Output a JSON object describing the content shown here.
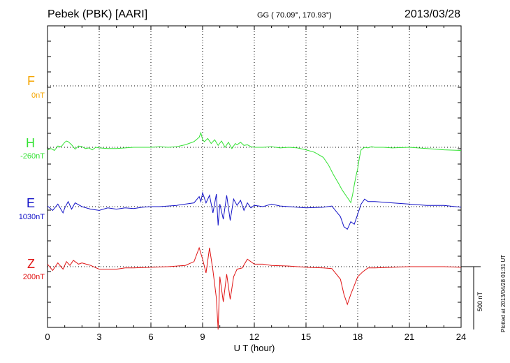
{
  "header": {
    "station": "Pebek (PBK)  [AARI]",
    "coords": "GG ( 70.09°, 170.93°)",
    "date": "2013/03/28"
  },
  "side_note": "Plotted at 2013/04/28 01:31  UT",
  "scale_label": "500 nT",
  "chart_data": {
    "type": "line",
    "title": "Pebek (PBK)  [AARI]",
    "xlabel": "U T (hour)",
    "ylabel": "",
    "xlim": [
      0,
      24
    ],
    "xticks": [
      0,
      3,
      6,
      9,
      12,
      15,
      18,
      21,
      24
    ],
    "xtick_labels": [
      "0",
      "3",
      "6",
      "9",
      "12",
      "15",
      "18",
      "21",
      "24"
    ],
    "scale_bar_nT": 500,
    "series": [
      {
        "name": "F",
        "baseline_label": "0nT",
        "color": "#f5a500",
        "x": [],
        "values": []
      },
      {
        "name": "H",
        "baseline_label": "-260nT",
        "color": "#33e233",
        "x": [
          0,
          0.2,
          0.4,
          0.6,
          0.8,
          1.0,
          1.1,
          1.2,
          1.4,
          1.6,
          1.8,
          2.0,
          2.2,
          2.4,
          2.6,
          2.8,
          3.0,
          3.5,
          4.0,
          4.5,
          5.0,
          5.5,
          6.0,
          6.5,
          7.0,
          7.5,
          8.0,
          8.5,
          8.8,
          8.9,
          9.0,
          9.1,
          9.3,
          9.5,
          9.7,
          9.9,
          10.1,
          10.3,
          10.5,
          10.7,
          10.9,
          11.0,
          11.2,
          11.4,
          11.6,
          11.8,
          12.0,
          12.5,
          13,
          13.5,
          14,
          14.5,
          15,
          15.5,
          16,
          16.3,
          16.6,
          16.9,
          17.1,
          17.3,
          17.5,
          17.6,
          17.7,
          17.8,
          17.9,
          18.0,
          18.1,
          18.2,
          18.4,
          18.6,
          18.8,
          19,
          19.5,
          20,
          21,
          22,
          23,
          24
        ],
        "values": [
          -20,
          -10,
          -25,
          10,
          5,
          40,
          50,
          45,
          20,
          -15,
          10,
          5,
          -10,
          -5,
          -20,
          0,
          -5,
          -10,
          -10,
          -5,
          0,
          0,
          0,
          5,
          0,
          5,
          20,
          45,
          80,
          115,
          60,
          45,
          70,
          30,
          60,
          15,
          50,
          0,
          40,
          -10,
          30,
          20,
          40,
          15,
          20,
          5,
          0,
          0,
          5,
          -5,
          0,
          -5,
          -20,
          -40,
          -80,
          -140,
          -220,
          -290,
          -340,
          -380,
          -420,
          -440,
          -380,
          -300,
          -230,
          -170,
          -80,
          -20,
          0,
          -5,
          5,
          0,
          0,
          -5,
          0,
          -10,
          -20,
          -25
        ]
      },
      {
        "name": "E",
        "baseline_label": "1030nT",
        "color": "#1414c8",
        "x": [
          0,
          0.3,
          0.6,
          0.9,
          1.0,
          1.2,
          1.4,
          1.6,
          2.0,
          2.5,
          3.0,
          3.5,
          4,
          4.5,
          5,
          5.5,
          6,
          6.5,
          7,
          7.5,
          8,
          8.5,
          8.8,
          8.9,
          9.0,
          9.2,
          9.4,
          9.6,
          9.8,
          9.9,
          10.0,
          10.2,
          10.4,
          10.6,
          10.8,
          11.0,
          11.2,
          11.4,
          11.6,
          11.8,
          12,
          12.5,
          13,
          13.5,
          14,
          15,
          16,
          16.5,
          17,
          17.2,
          17.4,
          17.6,
          17.8,
          18.0,
          18.2,
          18.4,
          18.6,
          19,
          20,
          21,
          22,
          23,
          24
        ],
        "values": [
          5,
          -30,
          20,
          -50,
          -10,
          40,
          -20,
          30,
          0,
          -20,
          -30,
          -10,
          -20,
          -10,
          -15,
          -5,
          0,
          0,
          5,
          10,
          20,
          30,
          80,
          40,
          110,
          30,
          90,
          -50,
          100,
          -150,
          20,
          -100,
          90,
          -110,
          60,
          10,
          50,
          -30,
          30,
          -10,
          10,
          0,
          20,
          5,
          0,
          -10,
          -5,
          5,
          -80,
          -160,
          -180,
          -120,
          -140,
          -60,
          20,
          60,
          40,
          40,
          30,
          20,
          10,
          10,
          -5
        ]
      },
      {
        "name": "Z",
        "baseline_label": "200nT",
        "color": "#e01414",
        "x": [
          0,
          0.3,
          0.6,
          0.9,
          1.1,
          1.3,
          1.5,
          1.8,
          2.0,
          2.5,
          3.0,
          3.5,
          4,
          4.5,
          5,
          6,
          7,
          8,
          8.5,
          8.8,
          9.0,
          9.2,
          9.4,
          9.6,
          9.8,
          9.9,
          10.0,
          10.2,
          10.4,
          10.6,
          10.8,
          11.0,
          11.3,
          11.6,
          12,
          12.5,
          13,
          14,
          15,
          16,
          16.5,
          17,
          17.2,
          17.4,
          17.6,
          17.8,
          18.0,
          18.3,
          18.6,
          19,
          20,
          21,
          22,
          23,
          24
        ],
        "values": [
          20,
          -30,
          30,
          -20,
          40,
          10,
          50,
          20,
          30,
          10,
          -20,
          -20,
          -20,
          -10,
          -10,
          -5,
          0,
          10,
          40,
          150,
          60,
          -50,
          150,
          -30,
          -250,
          -500,
          -80,
          -280,
          -60,
          -260,
          -80,
          -20,
          -10,
          60,
          20,
          20,
          10,
          5,
          -5,
          -10,
          -15,
          -100,
          -220,
          -300,
          -220,
          -150,
          -80,
          -40,
          -10,
          -10,
          -5,
          0,
          0,
          0,
          -5
        ]
      }
    ]
  }
}
